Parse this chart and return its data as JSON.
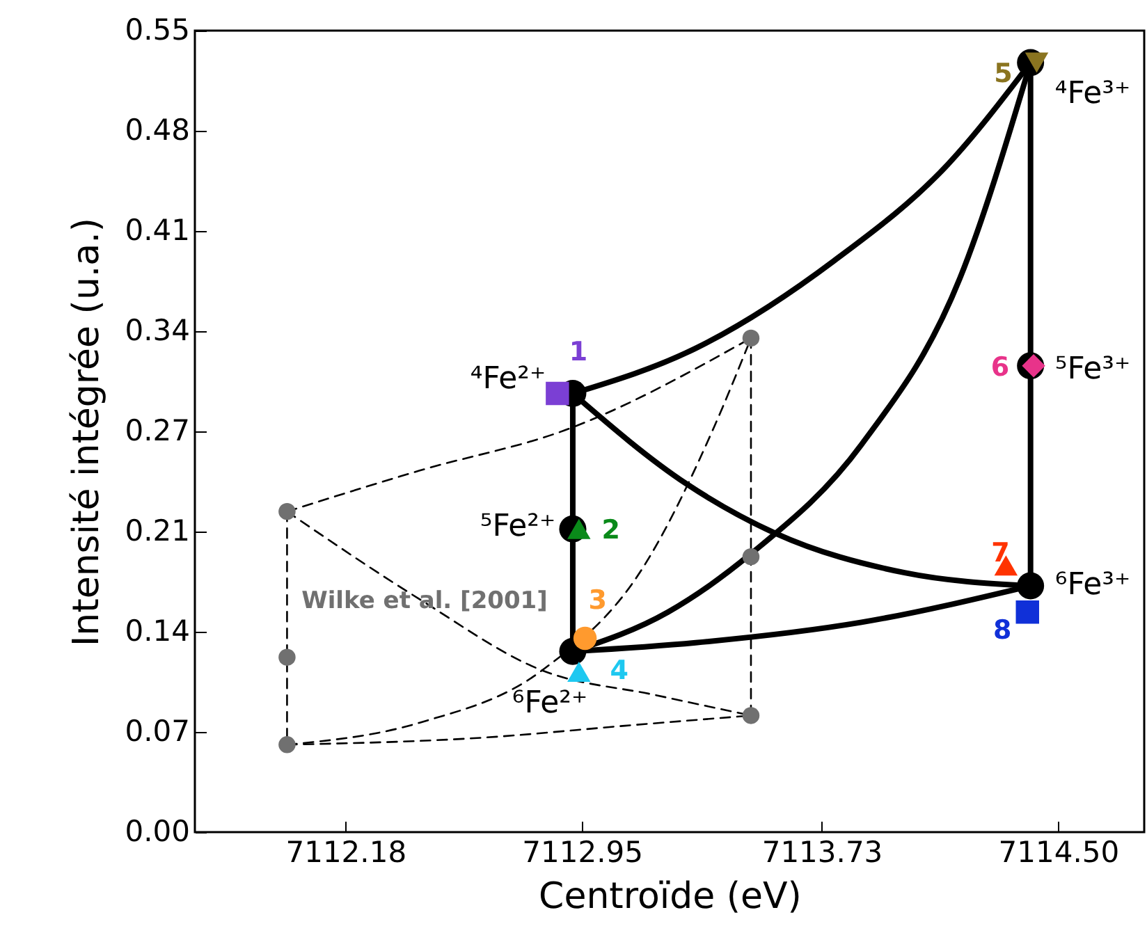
{
  "chart_data": {
    "type": "scatter",
    "xlabel": "Centroïde (eV)",
    "ylabel": "Intensité intégrée (u.a.)",
    "xlim": [
      7111.69,
      7114.78
    ],
    "xticks": [
      7112.18,
      7112.95,
      7113.73,
      {
        "value": 7114.5,
        "label": "7114.50"
      }
    ],
    "ylim": [
      0,
      0.55
    ],
    "yticks": [
      {
        "value": 0,
        "label": "0.00"
      },
      {
        "value": 0.06875,
        "label": "0.07"
      },
      {
        "value": 0.1375,
        "label": "0.14"
      },
      {
        "value": 0.20625,
        "label": "0.21"
      },
      {
        "value": 0.275,
        "label": "0.27"
      },
      {
        "value": 0.34375,
        "label": "0.34"
      },
      {
        "value": 0.4125,
        "label": "0.41"
      },
      {
        "value": 0.48125,
        "label": "0.48"
      },
      {
        "value": 0.55,
        "label": "0.55"
      }
    ],
    "grid": false,
    "legend": false,
    "series": [
      {
        "type": "line",
        "color": "#000000",
        "line_style": "solid",
        "x": [
          7112.92,
          7113.32,
          7113.77,
          7114.14,
          7114.41
        ],
        "values": [
          0.301,
          0.332,
          0.392,
          0.458,
          0.528
        ]
      },
      {
        "type": "line",
        "color": "#000000",
        "line_style": "solid",
        "x": [
          7112.92,
          7113.29,
          7113.58,
          7114.0,
          7114.41
        ],
        "values": [
          0.301,
          0.239,
          0.205,
          0.178,
          0.169
        ]
      },
      {
        "type": "line",
        "color": "#000000",
        "line_style": "solid",
        "x": [
          7112.92,
          7113.23,
          7113.5,
          7113.86,
          7114.18,
          7114.41
        ],
        "values": [
          0.124,
          0.151,
          0.191,
          0.266,
          0.38,
          0.528
        ]
      },
      {
        "type": "line",
        "color": "#000000",
        "line_style": "solid",
        "x": [
          7112.92,
          7113.32,
          7113.86,
          7114.41
        ],
        "values": [
          0.124,
          0.13,
          0.144,
          0.169
        ]
      },
      {
        "type": "line",
        "color": "#000000",
        "line_style": "solid",
        "x": [
          7112.92,
          7112.92,
          7112.92
        ],
        "values": [
          0.301,
          0.208,
          0.124
        ]
      },
      {
        "type": "line",
        "color": "#000000",
        "line_style": "solid",
        "x": [
          7114.41,
          7114.41,
          7114.41
        ],
        "values": [
          0.528,
          0.32,
          0.169
        ]
      },
      {
        "type": "line",
        "color": "#000000",
        "line_style": "dashed",
        "x": [
          7111.99,
          7112.42,
          7112.91,
          7113.5
        ],
        "values": [
          0.22,
          0.248,
          0.277,
          0.339
        ]
      },
      {
        "type": "line",
        "color": "#000000",
        "line_style": "dashed",
        "x": [
          7111.99,
          7112.42,
          7112.82,
          7113.15,
          7113.38,
          7113.5
        ],
        "values": [
          0.06,
          0.075,
          0.111,
          0.182,
          0.278,
          0.339
        ]
      },
      {
        "type": "line",
        "color": "#000000",
        "line_style": "dashed",
        "x": [
          7111.99,
          7112.42,
          7112.82,
          7113.19,
          7113.5
        ],
        "values": [
          0.22,
          0.16,
          0.111,
          0.094,
          0.08
        ]
      },
      {
        "type": "line",
        "color": "#000000",
        "line_style": "dashed",
        "x": [
          7111.99,
          7112.64,
          7113.09,
          7113.5
        ],
        "values": [
          0.06,
          0.065,
          0.073,
          0.08
        ]
      },
      {
        "type": "line",
        "color": "#000000",
        "line_style": "dashed",
        "x": [
          7111.99,
          7111.99,
          7111.99
        ],
        "values": [
          0.22,
          0.12,
          0.06
        ]
      },
      {
        "type": "line",
        "color": "#000000",
        "line_style": "dashed",
        "x": [
          7113.5,
          7113.5,
          7113.5
        ],
        "values": [
          0.339,
          0.189,
          0.08
        ]
      },
      {
        "type": "scatter",
        "color": "#707070",
        "marker": "circle",
        "x": [
          7111.99,
          7111.99,
          7111.99,
          7113.5,
          7113.5,
          7113.5
        ],
        "values": [
          0.22,
          0.12,
          0.06,
          0.339,
          0.189,
          0.08
        ]
      },
      {
        "type": "scatter",
        "color": "#000000",
        "marker": "circle",
        "x": [
          7112.92,
          7112.92,
          7112.92,
          7114.41,
          7114.41,
          7114.41
        ],
        "values": [
          0.301,
          0.208,
          0.124,
          0.528,
          0.32,
          0.169
        ]
      },
      {
        "type": "scatter",
        "name": "1",
        "color": "#7b3fd4",
        "marker": "square",
        "x": [
          7112.87
        ],
        "values": [
          0.301
        ]
      },
      {
        "type": "scatter",
        "name": "2",
        "color": "#0a8a1a",
        "marker": "triangle",
        "x": [
          7112.94
        ],
        "values": [
          0.208
        ]
      },
      {
        "type": "scatter",
        "name": "3",
        "color": "#ff9a2e",
        "marker": "circle",
        "x": [
          7112.96
        ],
        "values": [
          0.133
        ]
      },
      {
        "type": "scatter",
        "name": "4",
        "color": "#1ec8f0",
        "marker": "triangle",
        "x": [
          7112.94
        ],
        "values": [
          0.11
        ]
      },
      {
        "type": "scatter",
        "name": "5",
        "color": "#8a7420",
        "marker": "triangle-down",
        "x": [
          7114.43
        ],
        "values": [
          0.528
        ]
      },
      {
        "type": "scatter",
        "name": "6",
        "color": "#e8338a",
        "marker": "diamond",
        "x": [
          7114.42
        ],
        "values": [
          0.32
        ]
      },
      {
        "type": "scatter",
        "name": "7",
        "color": "#ff3300",
        "marker": "triangle",
        "x": [
          7114.33
        ],
        "values": [
          0.183
        ]
      },
      {
        "type": "scatter",
        "name": "8",
        "color": "#1030d8",
        "marker": "square",
        "x": [
          7114.4
        ],
        "values": [
          0.151
        ]
      }
    ],
    "annotations": [
      "⁴Fe²⁺",
      "⁵Fe²⁺",
      "⁶Fe²⁺",
      "⁴Fe³⁺",
      "⁵Fe³⁺",
      "⁶Fe³⁺",
      "Wilke et al. [2001]"
    ]
  }
}
